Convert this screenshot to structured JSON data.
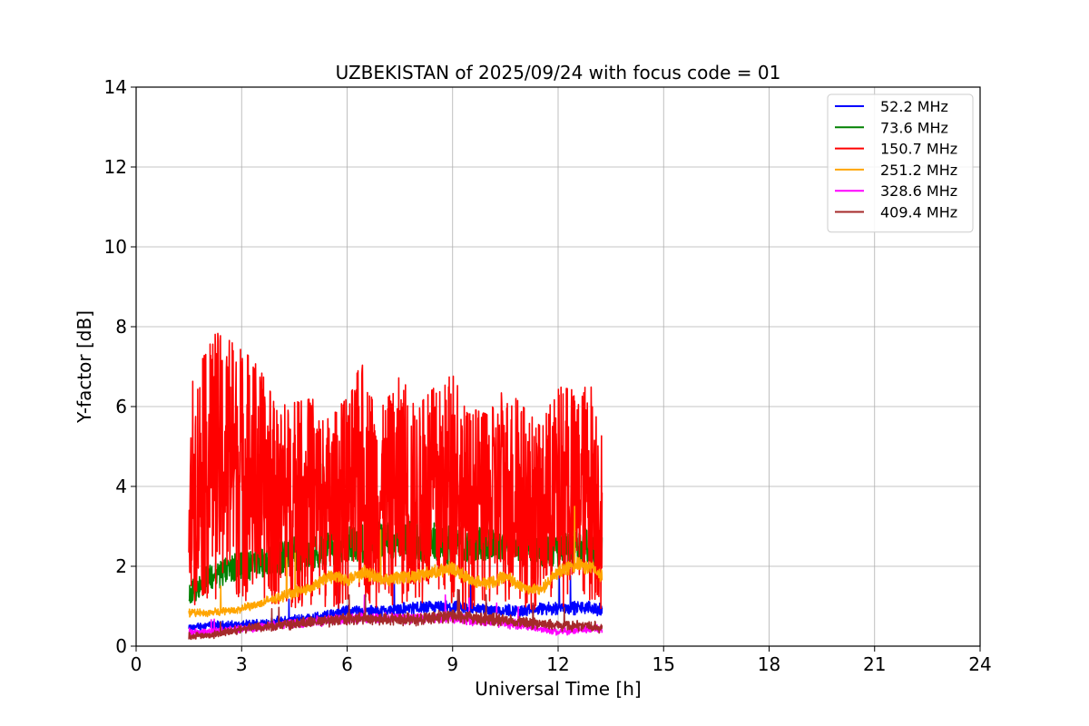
{
  "chart_data": {
    "type": "line",
    "title": "UZBEKISTAN of 2025/09/24 with focus code = 01",
    "xlabel": "Universal Time [h]",
    "ylabel": "Y-factor [dB]",
    "xlim": [
      0,
      24
    ],
    "ylim": [
      0,
      14
    ],
    "xticks": [
      0,
      3,
      6,
      9,
      12,
      15,
      18,
      21,
      24
    ],
    "yticks": [
      0,
      2,
      4,
      6,
      8,
      10,
      12,
      14
    ],
    "grid": true,
    "legend_position": "top-right",
    "data_range_x": [
      1.5,
      13.25
    ],
    "series": [
      {
        "name": " 52.2 MHz",
        "color": "#0000ff",
        "x": [
          1.5,
          2,
          3,
          4,
          5,
          6,
          7,
          8,
          9,
          10,
          11,
          12,
          13,
          13.25
        ],
        "y": [
          0.5,
          0.6,
          0.6,
          0.7,
          0.8,
          1.0,
          1.0,
          1.1,
          1.1,
          1.05,
          1.0,
          1.1,
          1.1,
          1.0
        ]
      },
      {
        "name": " 73.6 MHz",
        "color": "#008000",
        "x": [
          1.5,
          2,
          3,
          4,
          5,
          6,
          7,
          8,
          9,
          10,
          11,
          12,
          13,
          13.25
        ],
        "y": [
          1.5,
          2.0,
          2.4,
          2.6,
          2.8,
          3.0,
          3.1,
          3.1,
          3.0,
          3.0,
          3.0,
          2.8,
          2.9,
          2.8
        ]
      },
      {
        "name": "150.7 MHz",
        "color": "#ff0000",
        "x": [
          1.5,
          1.6,
          2.3,
          3.3,
          3.6,
          4.0,
          5.0,
          5.5,
          6.0,
          6.4,
          7.0,
          7.5,
          8.0,
          8.5,
          9.0,
          9.4,
          10.0,
          10.5,
          11.0,
          11.5,
          12.0,
          12.5,
          13.0,
          13.25
        ],
        "y": [
          3.1,
          6.7,
          7.9,
          7.2,
          6.8,
          6.0,
          6.2,
          5.8,
          6.2,
          7.1,
          6.0,
          6.8,
          6.0,
          6.5,
          6.8,
          6.0,
          5.8,
          6.5,
          6.0,
          5.5,
          6.5,
          6.4,
          6.8,
          5.6
        ]
      },
      {
        "name": "251.2 MHz",
        "color": "#ffa500",
        "x": [
          1.5,
          2,
          3,
          4,
          5,
          5.5,
          6,
          6.5,
          7,
          8,
          9,
          9.5,
          10,
          10.5,
          11,
          11.5,
          12,
          12.5,
          13,
          13.25
        ],
        "y": [
          0.9,
          0.9,
          1.0,
          1.3,
          1.6,
          1.9,
          1.8,
          2.0,
          1.8,
          1.9,
          2.1,
          1.8,
          1.7,
          1.9,
          1.6,
          1.5,
          2.0,
          2.2,
          2.1,
          1.9
        ]
      },
      {
        "name": "328.6 MHz",
        "color": "#ff00ff",
        "x": [
          1.5,
          2,
          3,
          4,
          5,
          6,
          7,
          8,
          9,
          10,
          11,
          12,
          13,
          13.25
        ],
        "y": [
          0.4,
          0.4,
          0.5,
          0.6,
          0.7,
          0.8,
          0.8,
          0.8,
          0.8,
          0.7,
          0.6,
          0.4,
          0.5,
          0.5
        ]
      },
      {
        "name": "409.4 MHz",
        "color": "#a52a2a",
        "x": [
          1.5,
          2,
          3,
          4,
          5,
          6,
          7,
          8,
          9,
          10,
          11,
          12,
          13,
          13.25
        ],
        "y": [
          0.3,
          0.3,
          0.5,
          0.6,
          0.7,
          0.8,
          0.8,
          0.8,
          0.9,
          0.8,
          0.7,
          0.6,
          0.6,
          0.5
        ]
      }
    ]
  }
}
